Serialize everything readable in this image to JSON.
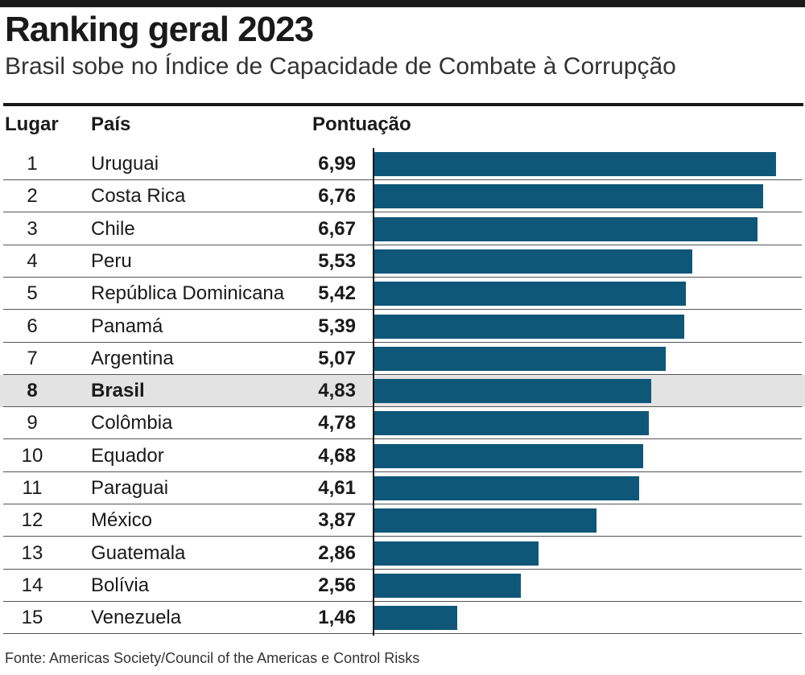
{
  "header": {
    "title": "Ranking geral 2023",
    "subtitle": "Brasil sobe no Índice de Capacidade de Combate à Corrupção"
  },
  "columns": {
    "lugar": "Lugar",
    "pais": "País",
    "pontuacao": "Pontuação"
  },
  "source": "Fonte: Americas Society/Council of the Americas e Control Risks",
  "colors": {
    "bar": "#0f5779",
    "highlight_row": "#e3e3e3"
  },
  "chart_data": {
    "type": "bar",
    "orientation": "horizontal",
    "title": "Ranking geral 2023",
    "subtitle": "Brasil sobe no Índice de Capacidade de Combate à Corrupção",
    "xlim": [
      0,
      7
    ],
    "grid": false,
    "highlight": "Brasil",
    "rows": [
      {
        "lugar": "1",
        "pais": "Uruguai",
        "score": "6,99",
        "value": 6.99
      },
      {
        "lugar": "2",
        "pais": "Costa Rica",
        "score": "6,76",
        "value": 6.76
      },
      {
        "lugar": "3",
        "pais": "Chile",
        "score": "6,67",
        "value": 6.67
      },
      {
        "lugar": "4",
        "pais": "Peru",
        "score": "5,53",
        "value": 5.53
      },
      {
        "lugar": "5",
        "pais": "República Dominicana",
        "score": "5,42",
        "value": 5.42
      },
      {
        "lugar": "6",
        "pais": "Panamá",
        "score": "5,39",
        "value": 5.39
      },
      {
        "lugar": "7",
        "pais": "Argentina",
        "score": "5,07",
        "value": 5.07
      },
      {
        "lugar": "8",
        "pais": "Brasil",
        "score": "4,83",
        "value": 4.83
      },
      {
        "lugar": "9",
        "pais": "Colômbia",
        "score": "4,78",
        "value": 4.78
      },
      {
        "lugar": "10",
        "pais": "Equador",
        "score": "4,68",
        "value": 4.68
      },
      {
        "lugar": "11",
        "pais": "Paraguai",
        "score": "4,61",
        "value": 4.61
      },
      {
        "lugar": "12",
        "pais": "México",
        "score": "3,87",
        "value": 3.87
      },
      {
        "lugar": "13",
        "pais": "Guatemala",
        "score": "2,86",
        "value": 2.86
      },
      {
        "lugar": "14",
        "pais": "Bolívia",
        "score": "2,56",
        "value": 2.56
      },
      {
        "lugar": "15",
        "pais": "Venezuela",
        "score": "1,46",
        "value": 1.46
      }
    ]
  }
}
